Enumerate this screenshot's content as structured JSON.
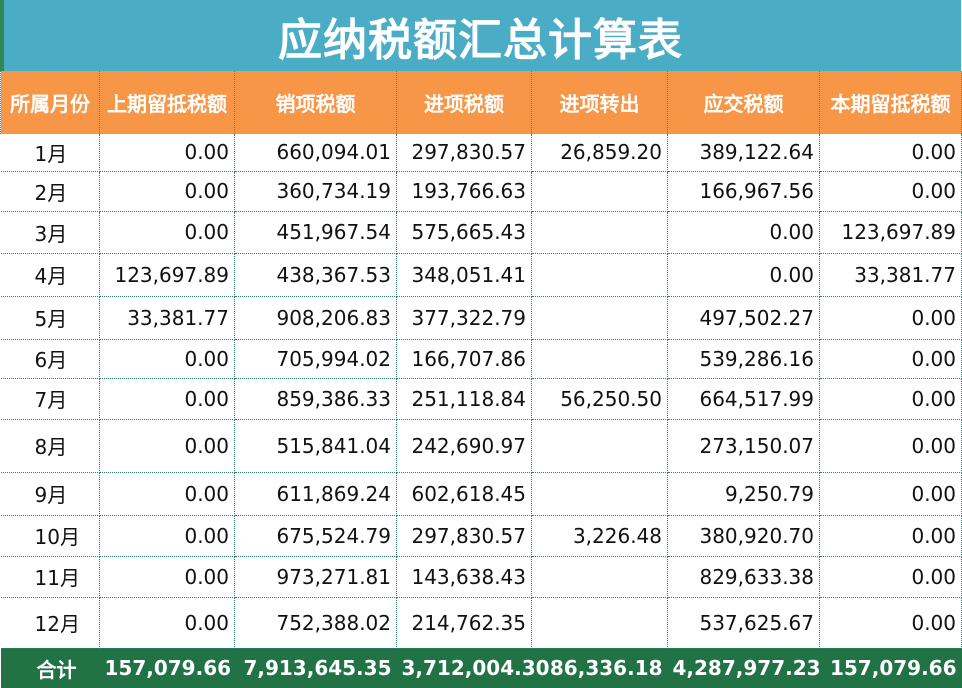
{
  "sheet": {
    "title": "应纳税额汇总计算表"
  },
  "headers": [
    "所属月份",
    "上期留抵税额",
    "销项税额",
    "进项税额",
    "进项转出",
    "应交税额",
    "本期留抵税额"
  ],
  "rows": [
    [
      "1月",
      "0.00",
      "660,094.01",
      "297,830.57",
      "26,859.20",
      "389,122.64",
      "0.00"
    ],
    [
      "2月",
      "0.00",
      "360,734.19",
      "193,766.63",
      "",
      "166,967.56",
      "0.00"
    ],
    [
      "3月",
      "0.00",
      "451,967.54",
      "575,665.43",
      "",
      "0.00",
      "123,697.89"
    ],
    [
      "4月",
      "123,697.89",
      "438,367.53",
      "348,051.41",
      "",
      "0.00",
      "33,381.77"
    ],
    [
      "5月",
      "33,381.77",
      "908,206.83",
      "377,322.79",
      "",
      "497,502.27",
      "0.00"
    ],
    [
      "6月",
      "0.00",
      "705,994.02",
      "166,707.86",
      "",
      "539,286.16",
      "0.00"
    ],
    [
      "7月",
      "0.00",
      "859,386.33",
      "251,118.84",
      "56,250.50",
      "664,517.99",
      "0.00"
    ],
    [
      "8月",
      "0.00",
      "515,841.04",
      "242,690.97",
      "",
      "273,150.07",
      "0.00"
    ],
    [
      "9月",
      "0.00",
      "611,869.24",
      "602,618.45",
      "",
      "9,250.79",
      "0.00"
    ],
    [
      "10月",
      "0.00",
      "675,524.79",
      "297,830.57",
      "3,226.48",
      "380,920.70",
      "0.00"
    ],
    [
      "11月",
      "0.00",
      "973,271.81",
      "143,638.43",
      "",
      "829,633.38",
      "0.00"
    ],
    [
      "12月",
      "0.00",
      "752,388.02",
      "214,762.35",
      "",
      "537,625.67",
      "0.00"
    ]
  ],
  "total": [
    "合计",
    "157,079.66",
    "7,913,645.35",
    "3,712,004.30",
    "86,336.18",
    "4,287,977.23",
    "157,079.66"
  ],
  "colors": {
    "title_bg": "#4bacc6",
    "header_bg": "#f79646",
    "total_bg": "#217346"
  }
}
